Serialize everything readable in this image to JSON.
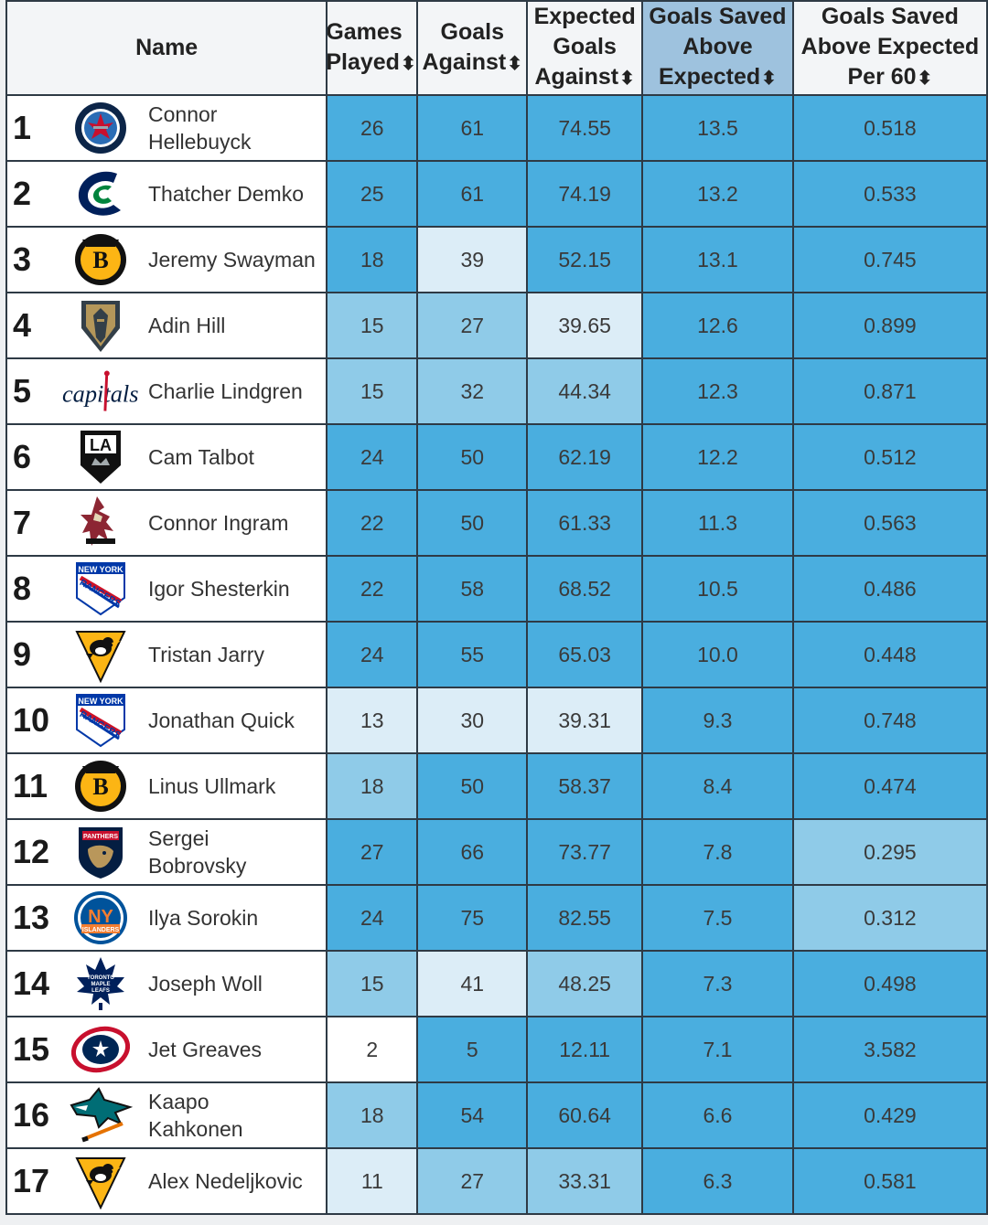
{
  "headers": {
    "name": "Name",
    "gp": [
      "Games",
      "Played"
    ],
    "ga": [
      "Goals",
      "Against"
    ],
    "xga": [
      "Expected",
      "Goals",
      "Against"
    ],
    "gsax": [
      "Goals Saved",
      "Above",
      "Expected"
    ],
    "gsax60": [
      "Goals Saved",
      "Above Expected",
      "Per 60"
    ],
    "sort_glyph": "⬍"
  },
  "colors": {
    "header_bg": "#f3f5f7",
    "sorted_header_bg": "#9ec2de",
    "heat_levels": [
      "#ffffff",
      "#dcedf7",
      "#8fcbe8",
      "#4aaedf"
    ]
  },
  "rows": [
    {
      "rank": "1",
      "name": [
        "Connor",
        "Hellebuyck"
      ],
      "team_logo": "winnipeg-jets-logo",
      "gp": "26",
      "ga": "61",
      "xga": "74.55",
      "gsax": "13.5",
      "gsax60": "0.518"
    },
    {
      "rank": "2",
      "name": [
        "Thatcher Demko"
      ],
      "team_logo": "vancouver-canucks-logo",
      "gp": "25",
      "ga": "61",
      "xga": "74.19",
      "gsax": "13.2",
      "gsax60": "0.533"
    },
    {
      "rank": "3",
      "name": [
        "Jeremy Swayman"
      ],
      "team_logo": "boston-bruins-logo",
      "gp": "18",
      "ga": "39",
      "xga": "52.15",
      "gsax": "13.1",
      "gsax60": "0.745"
    },
    {
      "rank": "4",
      "name": [
        "Adin Hill"
      ],
      "team_logo": "vegas-golden-knights-logo",
      "gp": "15",
      "ga": "27",
      "xga": "39.65",
      "gsax": "12.6",
      "gsax60": "0.899"
    },
    {
      "rank": "5",
      "name": [
        "Charlie Lindgren"
      ],
      "team_logo": "washington-capitals-logo",
      "gp": "15",
      "ga": "32",
      "xga": "44.34",
      "gsax": "12.3",
      "gsax60": "0.871"
    },
    {
      "rank": "6",
      "name": [
        "Cam Talbot"
      ],
      "team_logo": "los-angeles-kings-logo",
      "gp": "24",
      "ga": "50",
      "xga": "62.19",
      "gsax": "12.2",
      "gsax60": "0.512"
    },
    {
      "rank": "7",
      "name": [
        "Connor Ingram"
      ],
      "team_logo": "arizona-coyotes-logo",
      "gp": "22",
      "ga": "50",
      "xga": "61.33",
      "gsax": "11.3",
      "gsax60": "0.563"
    },
    {
      "rank": "8",
      "name": [
        "Igor Shesterkin"
      ],
      "team_logo": "new-york-rangers-logo",
      "gp": "22",
      "ga": "58",
      "xga": "68.52",
      "gsax": "10.5",
      "gsax60": "0.486"
    },
    {
      "rank": "9",
      "name": [
        "Tristan Jarry"
      ],
      "team_logo": "pittsburgh-penguins-logo",
      "gp": "24",
      "ga": "55",
      "xga": "65.03",
      "gsax": "10.0",
      "gsax60": "0.448"
    },
    {
      "rank": "10",
      "name": [
        "Jonathan Quick"
      ],
      "team_logo": "new-york-rangers-logo",
      "gp": "13",
      "ga": "30",
      "xga": "39.31",
      "gsax": "9.3",
      "gsax60": "0.748"
    },
    {
      "rank": "11",
      "name": [
        "Linus Ullmark"
      ],
      "team_logo": "boston-bruins-logo",
      "gp": "18",
      "ga": "50",
      "xga": "58.37",
      "gsax": "8.4",
      "gsax60": "0.474"
    },
    {
      "rank": "12",
      "name": [
        "Sergei",
        "Bobrovsky"
      ],
      "team_logo": "florida-panthers-logo",
      "gp": "27",
      "ga": "66",
      "xga": "73.77",
      "gsax": "7.8",
      "gsax60": "0.295"
    },
    {
      "rank": "13",
      "name": [
        "Ilya Sorokin"
      ],
      "team_logo": "new-york-islanders-logo",
      "gp": "24",
      "ga": "75",
      "xga": "82.55",
      "gsax": "7.5",
      "gsax60": "0.312"
    },
    {
      "rank": "14",
      "name": [
        "Joseph Woll"
      ],
      "team_logo": "toronto-maple-leafs-logo",
      "gp": "15",
      "ga": "41",
      "xga": "48.25",
      "gsax": "7.3",
      "gsax60": "0.498"
    },
    {
      "rank": "15",
      "name": [
        "Jet Greaves"
      ],
      "team_logo": "columbus-blue-jackets-logo",
      "gp": "2",
      "ga": "5",
      "xga": "12.11",
      "gsax": "7.1",
      "gsax60": "3.582"
    },
    {
      "rank": "16",
      "name": [
        "Kaapo",
        "Kahkonen"
      ],
      "team_logo": "san-jose-sharks-logo",
      "gp": "18",
      "ga": "54",
      "xga": "60.64",
      "gsax": "6.6",
      "gsax60": "0.429"
    },
    {
      "rank": "17",
      "name": [
        "Alex Nedeljkovic"
      ],
      "team_logo": "pittsburgh-penguins-logo",
      "gp": "11",
      "ga": "27",
      "xga": "33.31",
      "gsax": "6.3",
      "gsax60": "0.581"
    }
  ],
  "heat": [
    [
      3,
      3,
      3,
      3,
      3
    ],
    [
      3,
      3,
      3,
      3,
      3
    ],
    [
      3,
      1,
      3,
      3,
      3
    ],
    [
      2,
      2,
      1,
      3,
      3
    ],
    [
      2,
      2,
      2,
      3,
      3
    ],
    [
      3,
      3,
      3,
      3,
      3
    ],
    [
      3,
      3,
      3,
      3,
      3
    ],
    [
      3,
      3,
      3,
      3,
      3
    ],
    [
      3,
      3,
      3,
      3,
      3
    ],
    [
      1,
      1,
      1,
      3,
      3
    ],
    [
      2,
      3,
      3,
      3,
      3
    ],
    [
      3,
      3,
      3,
      3,
      2
    ],
    [
      3,
      3,
      3,
      3,
      2
    ],
    [
      2,
      1,
      2,
      3,
      3
    ],
    [
      0,
      3,
      3,
      3,
      3
    ],
    [
      2,
      3,
      3,
      3,
      3
    ],
    [
      1,
      2,
      2,
      3,
      3
    ]
  ],
  "watermarks": {
    "washington": "capitals",
    "la": "LA",
    "rangers": [
      "NEW YORK",
      "RANGERS"
    ],
    "panthers": "PANTHERS",
    "islanders": [
      "NY",
      "ISLANDERS"
    ],
    "leafs": [
      "TORONTO",
      "MAPLE",
      "LEAFS"
    ]
  }
}
